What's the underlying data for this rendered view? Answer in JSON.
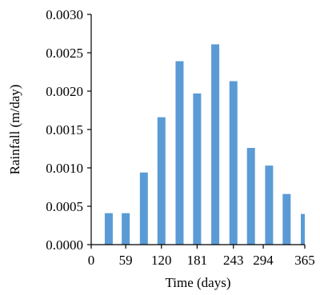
{
  "chart_data": {
    "type": "bar",
    "title": "",
    "xlabel": "Time (days)",
    "ylabel": "Rainfall (m/day)",
    "x": [
      30,
      59,
      90,
      120,
      151,
      181,
      212,
      243,
      273,
      304,
      334,
      365
    ],
    "values": [
      0.00041,
      0.00041,
      0.00094,
      0.00166,
      0.00239,
      0.00197,
      0.00261,
      0.00213,
      0.00126,
      0.00103,
      0.00066,
      0.0004
    ],
    "xlim": [
      0,
      365
    ],
    "ylim": [
      0,
      0.003
    ],
    "xticks": [
      "0",
      "59",
      "120",
      "181",
      "243",
      "294",
      "365"
    ],
    "xtick_values": [
      0,
      59,
      120,
      181,
      243,
      294,
      365
    ],
    "yticks": [
      "0.0000",
      "0.0005",
      "0.0010",
      "0.0015",
      "0.0020",
      "0.0025",
      "0.0030"
    ],
    "ytick_values": [
      0,
      0.0005,
      0.001,
      0.0015,
      0.002,
      0.0025,
      0.003
    ],
    "grid": false,
    "legend": "none",
    "bar_color": "#5B9BD5",
    "axis_color": "#000000"
  }
}
